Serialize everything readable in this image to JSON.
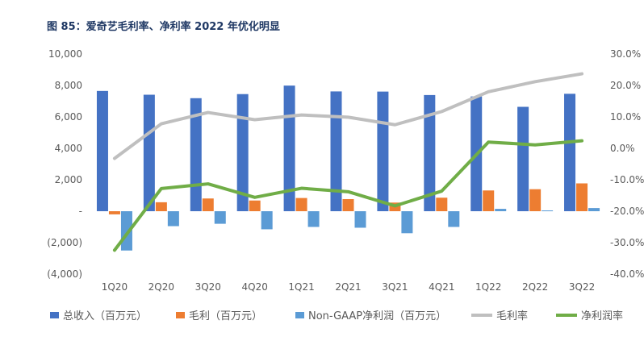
{
  "figure": {
    "title": "图 85：爱奇艺毛利率、净利率 2022 年优化明显"
  },
  "chart_data": {
    "type": "bar",
    "title": "图 85：爱奇艺毛利率、净利率 2022 年优化明显",
    "categories": [
      "1Q20",
      "2Q20",
      "3Q20",
      "4Q20",
      "1Q21",
      "2Q21",
      "3Q21",
      "4Q21",
      "1Q22",
      "2Q22",
      "3Q22"
    ],
    "series": [
      {
        "name": "总收入（百万元）",
        "type": "bar",
        "axis": "left",
        "color": "#4472c4",
        "values": [
          7650,
          7410,
          7190,
          7450,
          7990,
          7620,
          7610,
          7390,
          7300,
          6640,
          7470
        ]
      },
      {
        "name": "毛利（百万元）",
        "type": "bar",
        "axis": "left",
        "color": "#ed7d31",
        "values": [
          -200,
          570,
          810,
          680,
          840,
          770,
          550,
          860,
          1320,
          1400,
          1770
        ]
      },
      {
        "name": "Non-GAAP净利润（百万元）",
        "type": "bar",
        "axis": "left",
        "color": "#5b9bd5",
        "values": [
          -2500,
          -950,
          -800,
          -1150,
          -1000,
          -1050,
          -1400,
          -1000,
          150,
          50,
          200
        ]
      },
      {
        "name": "毛利率",
        "type": "line",
        "axis": "right",
        "color": "#bfbfbf",
        "values": [
          -3.2,
          7.8,
          11.4,
          9.1,
          10.6,
          9.9,
          7.5,
          11.7,
          18.0,
          21.2,
          23.7
        ]
      },
      {
        "name": "净利润率",
        "type": "line",
        "axis": "right",
        "color": "#70ad47",
        "values": [
          -32.4,
          -12.8,
          -11.3,
          -15.6,
          -12.7,
          -13.8,
          -18.3,
          -13.6,
          2.0,
          1.1,
          2.4
        ]
      }
    ],
    "y_left": {
      "ylim": [
        -4000,
        10000
      ],
      "ticks": [
        -4000,
        -2000,
        0,
        2000,
        4000,
        6000,
        8000,
        10000
      ],
      "tick_labels": [
        "(4,000)",
        "(2,000)",
        "-",
        "2,000",
        "4,000",
        "6,000",
        "8,000",
        "10,000"
      ]
    },
    "y_right": {
      "ylim": [
        -40,
        30
      ],
      "ticks": [
        -40,
        -30,
        -20,
        -10,
        0,
        10,
        20,
        30
      ],
      "tick_labels": [
        "-40.0%",
        "-30.0%",
        "-20.0%",
        "-10.0%",
        "0.0%",
        "10.0%",
        "20.0%",
        "30.0%"
      ]
    },
    "legend_position": "bottom",
    "grid": false
  }
}
